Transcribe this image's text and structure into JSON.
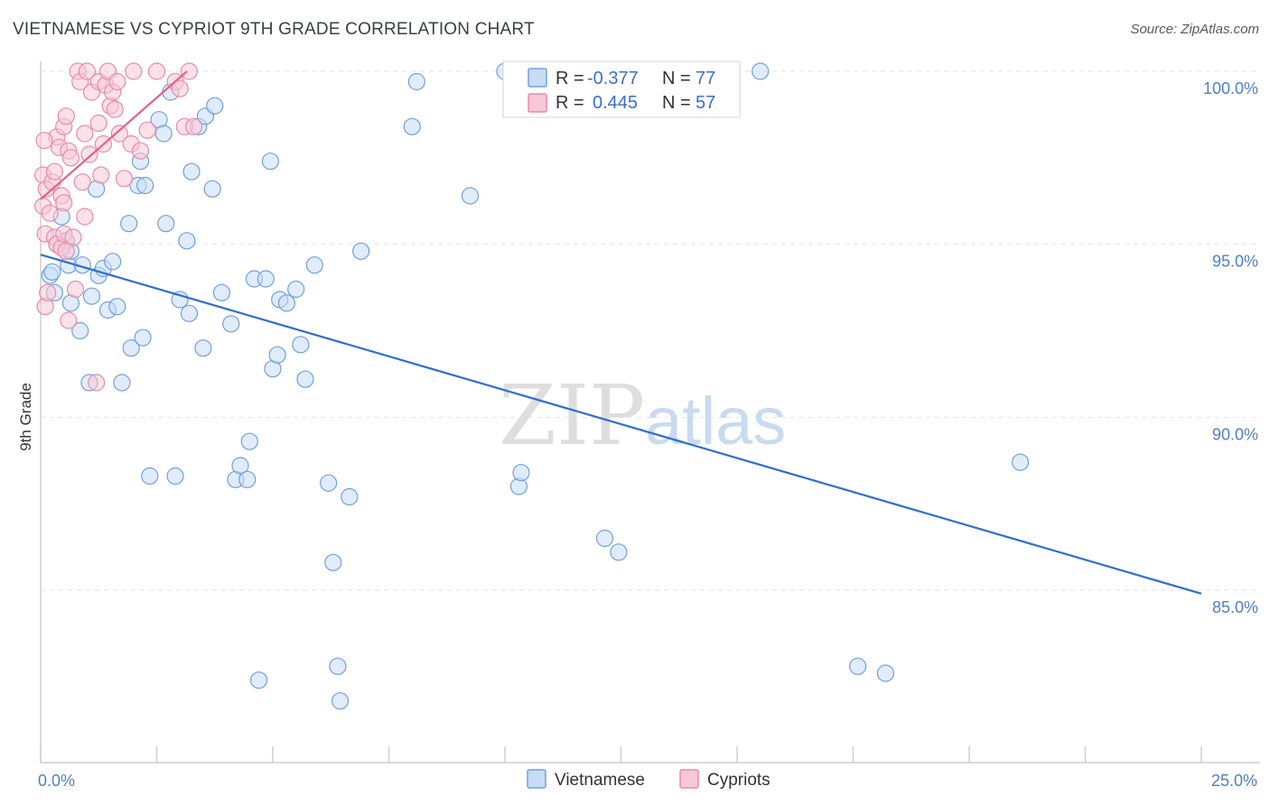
{
  "title": "VIETNAMESE VS CYPRIOT 9TH GRADE CORRELATION CHART",
  "source": "Source: ZipAtlas.com",
  "watermark": {
    "zip": "ZIP",
    "atlas": "atlas"
  },
  "chart_data": {
    "type": "scatter",
    "title": "VIETNAMESE VS CYPRIOT 9TH GRADE CORRELATION CHART",
    "xlabel": "",
    "ylabel": "9th Grade",
    "xlim": [
      0,
      25
    ],
    "ylim": [
      80.5,
      100.6
    ],
    "x_tick_labels": [
      {
        "value": 0,
        "label": "0.0%"
      },
      {
        "value": 25,
        "label": "25.0%"
      }
    ],
    "y_tick_labels": [
      {
        "value": 100,
        "label": "100.0%"
      },
      {
        "value": 95,
        "label": "95.0%"
      },
      {
        "value": 90,
        "label": "90.0%"
      },
      {
        "value": 85,
        "label": "85.0%"
      }
    ],
    "legend": {
      "position": "top-center",
      "entries": [
        {
          "r_label": "R = ",
          "r": "-0.377",
          "n_label": "N = ",
          "n": "77"
        },
        {
          "r_label": "R = ",
          "r": "0.445",
          "n_label": "N = ",
          "n": "57"
        }
      ]
    },
    "series": [
      {
        "name": "Vietnamese",
        "color": "#6fa0e0",
        "fill": "#c9dcf5",
        "trend": {
          "x": [
            0,
            25
          ],
          "y": [
            94.7,
            84.9
          ],
          "color": "#2f6fcf"
        },
        "points": [
          [
            0.2,
            94.1
          ],
          [
            0.25,
            94.2
          ],
          [
            0.3,
            93.6
          ],
          [
            0.35,
            95.0
          ],
          [
            0.45,
            95.8
          ],
          [
            0.55,
            95.1
          ],
          [
            0.6,
            94.4
          ],
          [
            0.65,
            94.8
          ],
          [
            0.65,
            93.3
          ],
          [
            0.85,
            92.5
          ],
          [
            0.9,
            94.4
          ],
          [
            1.05,
            91.0
          ],
          [
            1.1,
            93.5
          ],
          [
            1.2,
            96.6
          ],
          [
            1.25,
            94.1
          ],
          [
            1.35,
            94.3
          ],
          [
            1.45,
            93.1
          ],
          [
            1.55,
            94.5
          ],
          [
            1.65,
            93.2
          ],
          [
            1.75,
            91.0
          ],
          [
            1.9,
            95.6
          ],
          [
            1.95,
            92.0
          ],
          [
            2.1,
            96.7
          ],
          [
            2.15,
            97.4
          ],
          [
            2.2,
            92.3
          ],
          [
            2.25,
            96.7
          ],
          [
            2.35,
            88.3
          ],
          [
            2.55,
            98.6
          ],
          [
            2.65,
            98.2
          ],
          [
            2.7,
            95.6
          ],
          [
            2.8,
            99.4
          ],
          [
            2.9,
            88.3
          ],
          [
            3.0,
            93.4
          ],
          [
            3.15,
            95.1
          ],
          [
            3.2,
            93.0
          ],
          [
            3.25,
            97.1
          ],
          [
            3.4,
            98.4
          ],
          [
            3.5,
            92.0
          ],
          [
            3.55,
            98.7
          ],
          [
            3.7,
            96.6
          ],
          [
            3.75,
            99.0
          ],
          [
            3.9,
            93.6
          ],
          [
            4.1,
            92.7
          ],
          [
            4.2,
            88.2
          ],
          [
            4.3,
            88.6
          ],
          [
            4.45,
            88.2
          ],
          [
            4.5,
            89.3
          ],
          [
            4.6,
            94.0
          ],
          [
            4.7,
            82.4
          ],
          [
            4.85,
            94.0
          ],
          [
            4.95,
            97.4
          ],
          [
            5.0,
            91.4
          ],
          [
            5.1,
            91.8
          ],
          [
            5.15,
            93.4
          ],
          [
            5.3,
            93.3
          ],
          [
            5.5,
            93.7
          ],
          [
            5.6,
            92.1
          ],
          [
            5.7,
            91.1
          ],
          [
            5.9,
            94.4
          ],
          [
            6.2,
            88.1
          ],
          [
            6.3,
            85.8
          ],
          [
            6.4,
            82.8
          ],
          [
            6.45,
            81.8
          ],
          [
            6.65,
            87.7
          ],
          [
            6.9,
            94.8
          ],
          [
            8.0,
            98.4
          ],
          [
            8.1,
            99.7
          ],
          [
            9.25,
            96.4
          ],
          [
            10.0,
            100.0
          ],
          [
            10.3,
            88.0
          ],
          [
            10.35,
            88.4
          ],
          [
            12.15,
            86.5
          ],
          [
            12.45,
            86.1
          ],
          [
            15.5,
            100.0
          ],
          [
            17.6,
            82.8
          ],
          [
            18.2,
            82.6
          ],
          [
            21.1,
            88.7
          ]
        ]
      },
      {
        "name": "Cypriots",
        "color": "#e98aa8",
        "fill": "#f7c8d6",
        "trend": {
          "x": [
            0,
            3.15
          ],
          "y": [
            96.3,
            100.0
          ],
          "color": "#e8608b"
        },
        "points": [
          [
            0.05,
            97.0
          ],
          [
            0.05,
            96.1
          ],
          [
            0.1,
            95.3
          ],
          [
            0.1,
            93.2
          ],
          [
            0.12,
            96.6
          ],
          [
            0.15,
            93.6
          ],
          [
            0.2,
            95.9
          ],
          [
            0.25,
            96.8
          ],
          [
            0.3,
            97.1
          ],
          [
            0.3,
            95.2
          ],
          [
            0.35,
            98.1
          ],
          [
            0.35,
            95.0
          ],
          [
            0.4,
            97.8
          ],
          [
            0.45,
            96.4
          ],
          [
            0.45,
            94.9
          ],
          [
            0.5,
            98.4
          ],
          [
            0.5,
            96.2
          ],
          [
            0.5,
            95.3
          ],
          [
            0.55,
            98.7
          ],
          [
            0.55,
            94.8
          ],
          [
            0.6,
            92.8
          ],
          [
            0.6,
            97.7
          ],
          [
            0.65,
            97.5
          ],
          [
            0.7,
            95.2
          ],
          [
            0.75,
            93.7
          ],
          [
            0.8,
            100.0
          ],
          [
            0.85,
            99.7
          ],
          [
            0.9,
            96.8
          ],
          [
            0.95,
            98.2
          ],
          [
            0.95,
            95.8
          ],
          [
            1.0,
            100.0
          ],
          [
            1.05,
            97.6
          ],
          [
            1.1,
            99.4
          ],
          [
            1.2,
            91.0
          ],
          [
            1.25,
            99.7
          ],
          [
            1.25,
            98.5
          ],
          [
            1.3,
            97.0
          ],
          [
            1.35,
            97.9
          ],
          [
            1.4,
            99.6
          ],
          [
            1.45,
            100.0
          ],
          [
            1.5,
            99.0
          ],
          [
            1.55,
            99.4
          ],
          [
            1.6,
            98.9
          ],
          [
            1.65,
            99.7
          ],
          [
            1.7,
            98.2
          ],
          [
            1.8,
            96.9
          ],
          [
            1.95,
            97.9
          ],
          [
            2.0,
            100.0
          ],
          [
            2.15,
            97.7
          ],
          [
            2.3,
            98.3
          ],
          [
            2.5,
            100.0
          ],
          [
            2.9,
            99.7
          ],
          [
            3.0,
            99.5
          ],
          [
            3.1,
            98.4
          ],
          [
            3.2,
            100.0
          ],
          [
            3.3,
            98.4
          ],
          [
            0.08,
            98.0
          ]
        ]
      }
    ]
  },
  "bottom_legend": [
    {
      "label": "Vietnamese"
    },
    {
      "label": "Cypriots"
    }
  ]
}
